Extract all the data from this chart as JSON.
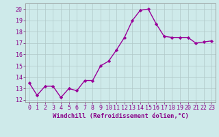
{
  "x": [
    0,
    1,
    2,
    3,
    4,
    5,
    6,
    7,
    8,
    9,
    10,
    11,
    12,
    13,
    14,
    15,
    16,
    17,
    18,
    19,
    20,
    21,
    22,
    23
  ],
  "y": [
    13.5,
    12.4,
    13.2,
    13.2,
    12.2,
    13.0,
    12.8,
    13.7,
    13.7,
    15.0,
    15.4,
    16.4,
    17.5,
    19.0,
    19.9,
    20.0,
    18.7,
    17.6,
    17.5,
    17.5,
    17.5,
    17.0,
    17.1,
    17.2
  ],
  "line_color": "#990099",
  "marker": "D",
  "marker_size": 2.2,
  "bg_color": "#ceeaea",
  "grid_color": "#b0c8c8",
  "xlabel": "Windchill (Refroidissement éolien,°C)",
  "xlim": [
    -0.5,
    23.5
  ],
  "ylim": [
    11.8,
    20.5
  ],
  "yticks": [
    12,
    13,
    14,
    15,
    16,
    17,
    18,
    19,
    20
  ],
  "xticks": [
    0,
    1,
    2,
    3,
    4,
    5,
    6,
    7,
    8,
    9,
    10,
    11,
    12,
    13,
    14,
    15,
    16,
    17,
    18,
    19,
    20,
    21,
    22,
    23
  ],
  "xlabel_fontsize": 6.5,
  "tick_fontsize": 6.0,
  "line_width": 1.0,
  "spine_color": "#888888",
  "label_color": "#880088",
  "tick_color": "#880088"
}
